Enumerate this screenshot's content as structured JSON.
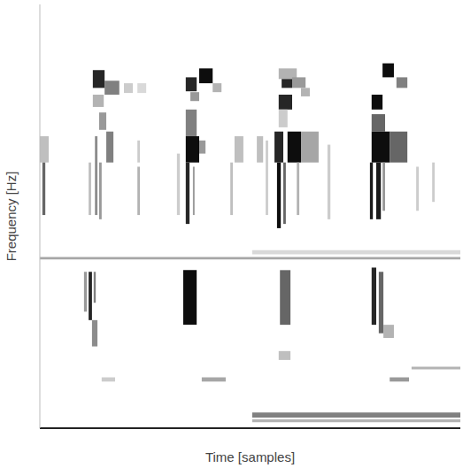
{
  "chart_data": {
    "type": "heatmap",
    "x_label": "Time [samples]",
    "y_label": "Frequency [Hz]",
    "xlim": [
      0,
      100
    ],
    "ylim": [
      0,
      100
    ],
    "tick_labels": false,
    "value_range": [
      0,
      1
    ],
    "cells": [
      [
        12.6,
        15.4,
        80.3,
        84.5,
        0.85
      ],
      [
        15.4,
        18.9,
        78.7,
        82.0,
        0.5
      ],
      [
        20.0,
        22.1,
        79.1,
        81.4,
        0.2
      ],
      [
        23.2,
        25.3,
        79.1,
        81.4,
        0.15
      ],
      [
        12.6,
        15.2,
        75.8,
        78.7,
        0.3
      ],
      [
        14.1,
        15.8,
        70.4,
        74.5,
        0.4
      ],
      [
        15.8,
        17.5,
        62.7,
        70.0,
        0.5
      ],
      [
        0,
        2.1,
        62.7,
        68.9,
        0.25
      ],
      [
        11.6,
        12.2,
        50.3,
        62.7,
        0.25
      ],
      [
        13.1,
        13.7,
        50.3,
        68.9,
        0.45
      ],
      [
        14.1,
        14.7,
        49.3,
        62.7,
        0.4
      ],
      [
        0.6,
        1.3,
        50.3,
        62.7,
        0.6
      ],
      [
        23.2,
        23.8,
        62.7,
        67.9,
        0.2
      ],
      [
        23.2,
        23.8,
        50.3,
        61.7,
        0.3
      ],
      [
        0,
        100,
        39.8,
        40.4,
        0.35
      ],
      [
        10.5,
        11.2,
        27.5,
        36.9,
        0.4
      ],
      [
        11.6,
        12.4,
        25.5,
        36.9,
        0.85
      ],
      [
        12.8,
        13.3,
        29.6,
        36.9,
        0.5
      ],
      [
        12.4,
        13.7,
        19.3,
        25.5,
        0.45
      ],
      [
        14.7,
        17.9,
        11.0,
        12.0,
        0.2
      ],
      [
        37.9,
        41.1,
        81.4,
        84.9,
        0.95
      ],
      [
        34.7,
        37.3,
        79.5,
        82.8,
        0.85
      ],
      [
        41.1,
        43.2,
        79.3,
        81.4,
        0.3
      ],
      [
        35.8,
        37.9,
        77.2,
        79.3,
        0.4
      ],
      [
        34.7,
        37.3,
        68.9,
        75.2,
        0.5
      ],
      [
        34.7,
        37.9,
        62.7,
        68.9,
        0.95
      ],
      [
        37.9,
        39.4,
        64.8,
        67.9,
        0.4
      ],
      [
        32.6,
        33.3,
        50.3,
        64.8,
        0.2
      ],
      [
        34.7,
        35.6,
        48.2,
        62.7,
        0.85
      ],
      [
        36.4,
        36.8,
        50.3,
        61.7,
        0.4
      ],
      [
        46.3,
        48.4,
        62.7,
        68.9,
        0.25
      ],
      [
        51.6,
        53.1,
        62.7,
        68.9,
        0.25
      ],
      [
        45.3,
        45.9,
        50.3,
        62.7,
        0.25
      ],
      [
        34.1,
        37.3,
        24.4,
        37.3,
        0.95
      ],
      [
        38.5,
        44.2,
        11.0,
        12.0,
        0.35
      ],
      [
        56.8,
        61.1,
        82.4,
        84.9,
        0.3
      ],
      [
        57.5,
        60.0,
        80.3,
        82.4,
        0.85
      ],
      [
        60.0,
        63.2,
        80.3,
        82.8,
        0.4
      ],
      [
        56.8,
        60.0,
        75.2,
        78.7,
        0.85
      ],
      [
        56.8,
        58.9,
        71.0,
        75.2,
        0.2
      ],
      [
        62.1,
        64.2,
        78.3,
        80.3,
        0.3
      ],
      [
        58.9,
        62.1,
        62.7,
        70.0,
        0.95
      ],
      [
        55.8,
        57.9,
        62.7,
        70.0,
        0.85
      ],
      [
        62.1,
        66.3,
        62.7,
        70.0,
        0.35
      ],
      [
        53.7,
        54.3,
        50.3,
        67.9,
        0.2
      ],
      [
        56.4,
        57.3,
        47.2,
        62.7,
        0.95
      ],
      [
        57.9,
        58.5,
        48.2,
        62.7,
        0.6
      ],
      [
        61.1,
        61.7,
        50.3,
        62.7,
        0.3
      ],
      [
        68.4,
        69.1,
        49.3,
        66.9,
        0.2
      ],
      [
        57.1,
        59.6,
        24.4,
        37.3,
        0.6
      ],
      [
        56.8,
        59.6,
        16.1,
        18.2,
        0.25
      ],
      [
        81.5,
        84.2,
        82.8,
        86.1,
        0.95
      ],
      [
        84.8,
        87.4,
        80.3,
        82.8,
        0.5
      ],
      [
        78.9,
        81.5,
        75.2,
        78.7,
        0.95
      ],
      [
        78.9,
        82.1,
        70.0,
        74.1,
        0.6
      ],
      [
        78.9,
        83.2,
        62.7,
        70.0,
        0.95
      ],
      [
        83.2,
        87.4,
        62.7,
        70.0,
        0.6
      ],
      [
        78.5,
        79.2,
        49.3,
        62.7,
        0.9
      ],
      [
        80.0,
        81.1,
        49.3,
        62.7,
        0.9
      ],
      [
        81.5,
        82.1,
        51.3,
        62.7,
        0.4
      ],
      [
        89.5,
        90.1,
        51.3,
        61.7,
        0.2
      ],
      [
        93.3,
        93.9,
        53.4,
        62.7,
        0.2
      ],
      [
        78.9,
        80.0,
        24.4,
        37.9,
        0.85
      ],
      [
        80.6,
        81.7,
        22.4,
        36.9,
        0.6
      ],
      [
        81.7,
        84.2,
        21.3,
        24.4,
        0.3
      ],
      [
        83.2,
        87.8,
        11.0,
        12.0,
        0.4
      ],
      [
        88.4,
        100,
        13.9,
        14.5,
        0.3
      ],
      [
        50.5,
        100,
        41.0,
        42.0,
        0.15
      ],
      [
        50.5,
        100,
        2.5,
        3.7,
        0.5
      ],
      [
        50.5,
        100,
        1.4,
        2.1,
        0.3
      ]
    ]
  }
}
